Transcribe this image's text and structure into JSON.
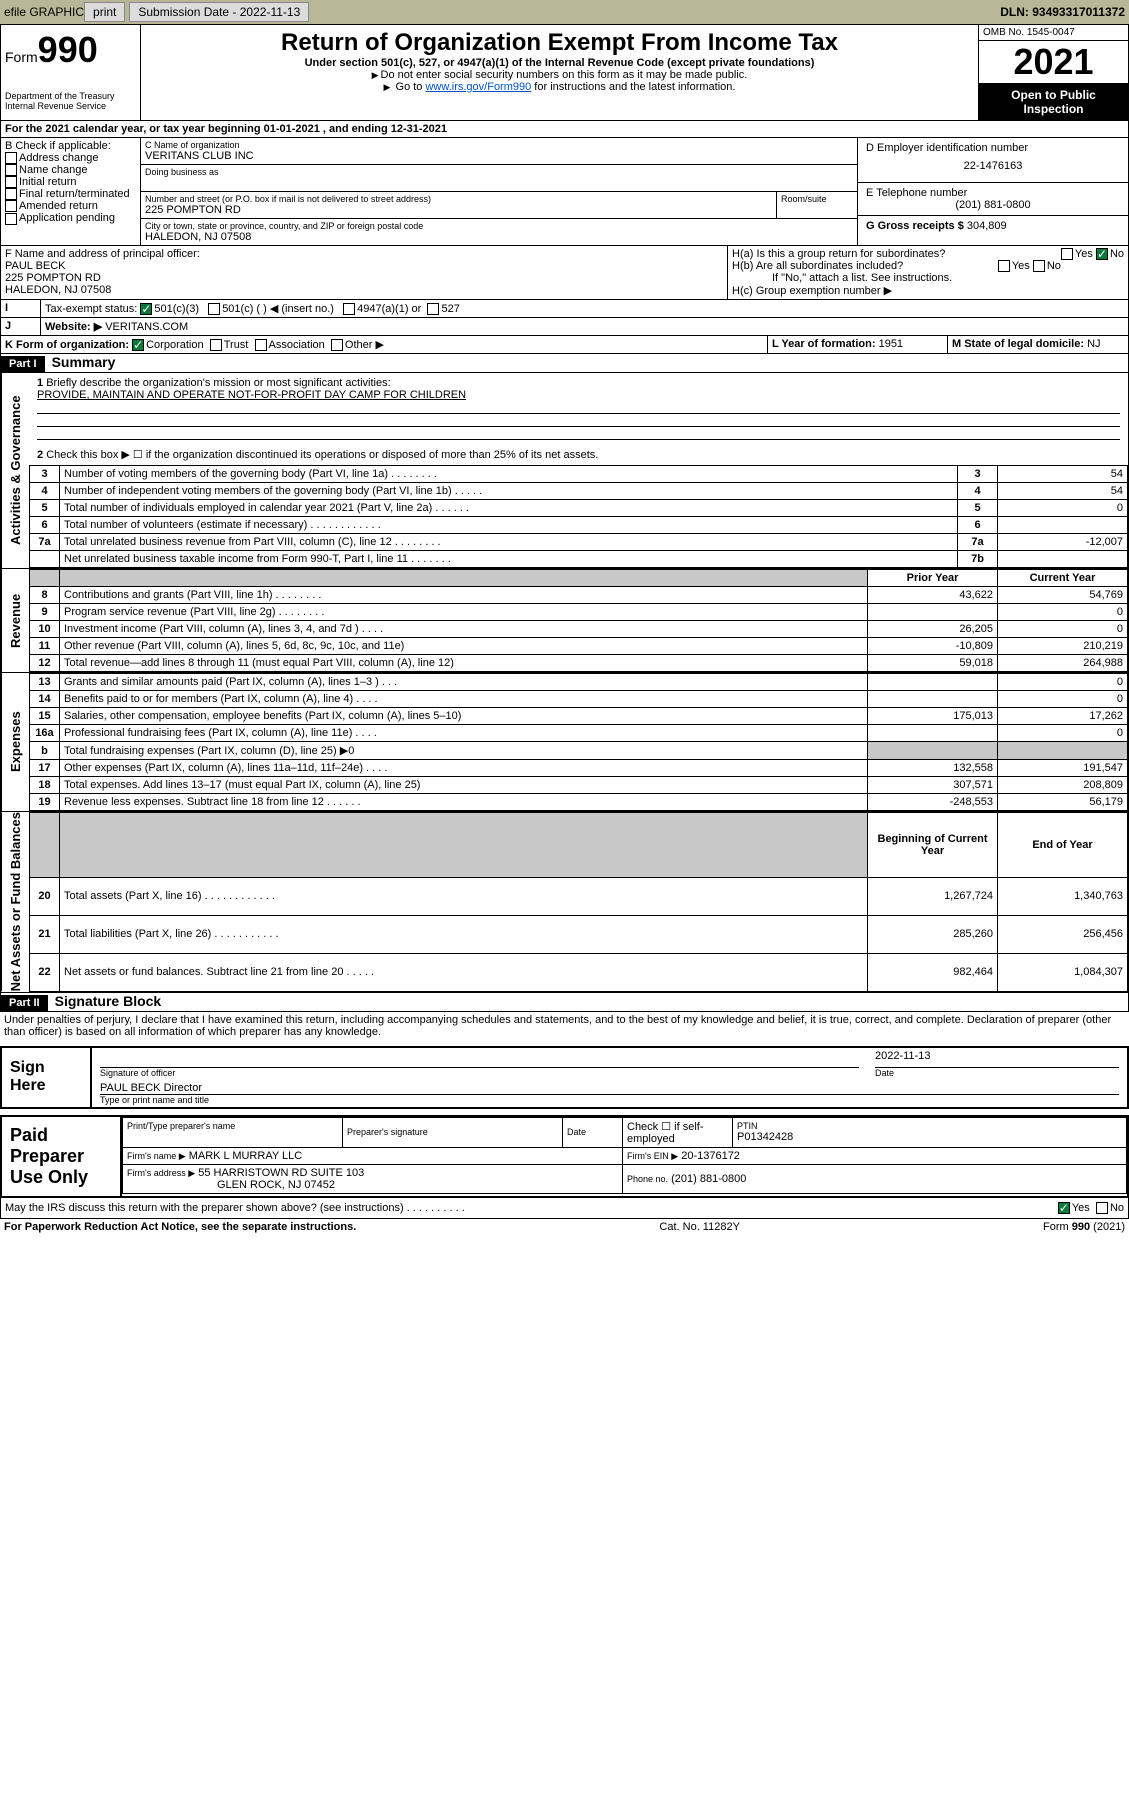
{
  "topbar": {
    "efile": "efile GRAPHIC",
    "print": "print",
    "subdate_lbl": "Submission Date - 2022-11-13",
    "dln": "DLN: 93493317011372"
  },
  "header": {
    "form_word": "Form",
    "form_num": "990",
    "dept": "Department of the Treasury",
    "irs": "Internal Revenue Service",
    "title": "Return of Organization Exempt From Income Tax",
    "sub1": "Under section 501(c), 527, or 4947(a)(1) of the Internal Revenue Code (except private foundations)",
    "sub2": "Do not enter social security numbers on this form as it may be made public.",
    "sub3_a": "Go to ",
    "sub3_link": "www.irs.gov/Form990",
    "sub3_b": " for instructions and the latest information.",
    "omb": "OMB No. 1545-0047",
    "year": "2021",
    "open": "Open to Public Inspection"
  },
  "lineA": "For the 2021 calendar year, or tax year beginning 01-01-2021   , and ending 12-31-2021",
  "boxB": {
    "title": "B Check if applicable:",
    "opts": [
      "Address change",
      "Name change",
      "Initial return",
      "Final return/terminated",
      "Amended return",
      "Application pending"
    ]
  },
  "boxC": {
    "lbl": "C Name of organization",
    "name": "VERITANS CLUB INC",
    "dba": "Doing business as",
    "addr_lbl": "Number and street (or P.O. box if mail is not delivered to street address)",
    "room": "Room/suite",
    "addr": "225 POMPTON RD",
    "city_lbl": "City or town, state or province, country, and ZIP or foreign postal code",
    "city": "HALEDON, NJ  07508"
  },
  "boxD": {
    "lbl": "D Employer identification number",
    "val": "22-1476163"
  },
  "boxE": {
    "lbl": "E Telephone number",
    "val": "(201) 881-0800"
  },
  "boxG": {
    "lbl": "G Gross receipts $",
    "val": "304,809"
  },
  "boxF": {
    "lbl": "F Name and address of principal officer:",
    "name": "PAUL BECK",
    "addr1": "225 POMPTON RD",
    "addr2": "HALEDON, NJ  07508"
  },
  "boxH": {
    "a": "H(a)  Is this a group return for subordinates?",
    "b": "H(b)  Are all subordinates included?",
    "note": "If \"No,\" attach a list. See instructions.",
    "c": "H(c)  Group exemption number ▶"
  },
  "boxI": {
    "lbl": "Tax-exempt status:",
    "c3": "501(c)(3)",
    "c": "501(c) (  ) ◀ (insert no.)",
    "a1": "4947(a)(1) or",
    "s527": "527"
  },
  "boxJ": {
    "lbl": "Website: ▶",
    "val": "VERITANS.COM"
  },
  "boxK": {
    "lbl": "K Form of organization:",
    "corp": "Corporation",
    "trust": "Trust",
    "assoc": "Association",
    "other": "Other ▶"
  },
  "boxL": {
    "lbl": "L Year of formation:",
    "val": "1951"
  },
  "boxM": {
    "lbl": "M State of legal domicile:",
    "val": "NJ"
  },
  "part1": {
    "hdr": "Part I",
    "title": "Summary",
    "l1": "Briefly describe the organization's mission or most significant activities:",
    "mission": "PROVIDE, MAINTAIN AND OPERATE NOT-FOR-PROFIT DAY CAMP FOR CHILDREN",
    "l2": "Check this box ▶ ☐ if the organization discontinued its operations or disposed of more than 25% of its net assets.",
    "gov": "Activities & Governance",
    "rev": "Revenue",
    "exp": "Expenses",
    "net": "Net Assets or Fund Balances",
    "rows_gov": [
      {
        "n": "3",
        "d": "Number of voting members of the governing body (Part VI, line 1a)   .    .    .    .    .    .    .    .",
        "b": "3",
        "v": "54"
      },
      {
        "n": "4",
        "d": "Number of independent voting members of the governing body (Part VI, line 1b)   .    .    .    .    .",
        "b": "4",
        "v": "54"
      },
      {
        "n": "5",
        "d": "Total number of individuals employed in calendar year 2021 (Part V, line 2a)   .    .    .    .    .    .",
        "b": "5",
        "v": "0"
      },
      {
        "n": "6",
        "d": "Total number of volunteers (estimate if necessary)   .    .    .    .    .    .    .    .    .    .    .    .",
        "b": "6",
        "v": ""
      },
      {
        "n": "7a",
        "d": "Total unrelated business revenue from Part VIII, column (C), line 12   .    .    .    .    .    .    .    .",
        "b": "7a",
        "v": "-12,007"
      },
      {
        "n": "",
        "d": "Net unrelated business taxable income from Form 990-T, Part I, line 11   .    .    .    .    .    .    .",
        "b": "7b",
        "v": ""
      }
    ],
    "col_py": "Prior Year",
    "col_cy": "Current Year",
    "rows_rev": [
      {
        "n": "8",
        "d": "Contributions and grants (Part VIII, line 1h)   .    .    .    .    .    .    .    .",
        "py": "43,622",
        "cy": "54,769"
      },
      {
        "n": "9",
        "d": "Program service revenue (Part VIII, line 2g)   .    .    .    .    .    .    .    .",
        "py": "",
        "cy": "0"
      },
      {
        "n": "10",
        "d": "Investment income (Part VIII, column (A), lines 3, 4, and 7d )   .    .    .    .",
        "py": "26,205",
        "cy": "0"
      },
      {
        "n": "11",
        "d": "Other revenue (Part VIII, column (A), lines 5, 6d, 8c, 9c, 10c, and 11e)",
        "py": "-10,809",
        "cy": "210,219"
      },
      {
        "n": "12",
        "d": "Total revenue—add lines 8 through 11 (must equal Part VIII, column (A), line 12)",
        "py": "59,018",
        "cy": "264,988"
      }
    ],
    "rows_exp": [
      {
        "n": "13",
        "d": "Grants and similar amounts paid (Part IX, column (A), lines 1–3 )   .    .    .",
        "py": "",
        "cy": "0"
      },
      {
        "n": "14",
        "d": "Benefits paid to or for members (Part IX, column (A), line 4)   .    .    .    .",
        "py": "",
        "cy": "0"
      },
      {
        "n": "15",
        "d": "Salaries, other compensation, employee benefits (Part IX, column (A), lines 5–10)",
        "py": "175,013",
        "cy": "17,262"
      },
      {
        "n": "16a",
        "d": "Professional fundraising fees (Part IX, column (A), line 11e)   .    .    .    .",
        "py": "",
        "cy": "0"
      },
      {
        "n": "b",
        "d": "Total fundraising expenses (Part IX, column (D), line 25) ▶0",
        "py": "SHADE",
        "cy": "SHADE"
      },
      {
        "n": "17",
        "d": "Other expenses (Part IX, column (A), lines 11a–11d, 11f–24e)   .    .    .    .",
        "py": "132,558",
        "cy": "191,547"
      },
      {
        "n": "18",
        "d": "Total expenses. Add lines 13–17 (must equal Part IX, column (A), line 25)",
        "py": "307,571",
        "cy": "208,809"
      },
      {
        "n": "19",
        "d": "Revenue less expenses. Subtract line 18 from line 12   .    .    .    .    .    .",
        "py": "-248,553",
        "cy": "56,179"
      }
    ],
    "col_boy": "Beginning of Current Year",
    "col_eoy": "End of Year",
    "rows_net": [
      {
        "n": "20",
        "d": "Total assets (Part X, line 16)   .    .    .    .    .    .    .    .    .    .    .    .",
        "py": "1,267,724",
        "cy": "1,340,763"
      },
      {
        "n": "21",
        "d": "Total liabilities (Part X, line 26)   .    .    .    .    .    .    .    .    .    .    .",
        "py": "285,260",
        "cy": "256,456"
      },
      {
        "n": "22",
        "d": "Net assets or fund balances. Subtract line 21 from line 20   .    .    .    .    .",
        "py": "982,464",
        "cy": "1,084,307"
      }
    ]
  },
  "part2": {
    "hdr": "Part II",
    "title": "Signature Block",
    "decl": "Under penalties of perjury, I declare that I have examined this return, including accompanying schedules and statements, and to the best of my knowledge and belief, it is true, correct, and complete. Declaration of preparer (other than officer) is based on all information of which preparer has any knowledge.",
    "sign_here": "Sign Here",
    "sig_off": "Signature of officer",
    "date": "Date",
    "sig_date": "2022-11-13",
    "officer": "PAUL BECK  Director",
    "type_name": "Type or print name and title",
    "paid": "Paid Preparer Use Only",
    "col_prep": "Print/Type preparer's name",
    "col_sig": "Preparer's signature",
    "col_date": "Date",
    "self": "Check ☐ if self-employed",
    "ptin_lbl": "PTIN",
    "ptin": "P01342428",
    "firm_name_lbl": "Firm's name    ▶",
    "firm_name": "MARK L MURRAY LLC",
    "firm_ein_lbl": "Firm's EIN ▶",
    "firm_ein": "20-1376172",
    "firm_addr_lbl": "Firm's address ▶",
    "firm_addr1": "55 HARRISTOWN RD SUITE 103",
    "firm_addr2": "GLEN ROCK, NJ  07452",
    "phone_lbl": "Phone no.",
    "phone": "(201) 881-0800",
    "discuss": "May the IRS discuss this return with the preparer shown above? (see instructions)   .    .    .    .    .    .    .    .    .    .",
    "yes": "Yes",
    "no": "No"
  },
  "footer": {
    "pra": "For Paperwork Reduction Act Notice, see the separate instructions.",
    "cat": "Cat. No. 11282Y",
    "form": "Form 990 (2021)"
  }
}
